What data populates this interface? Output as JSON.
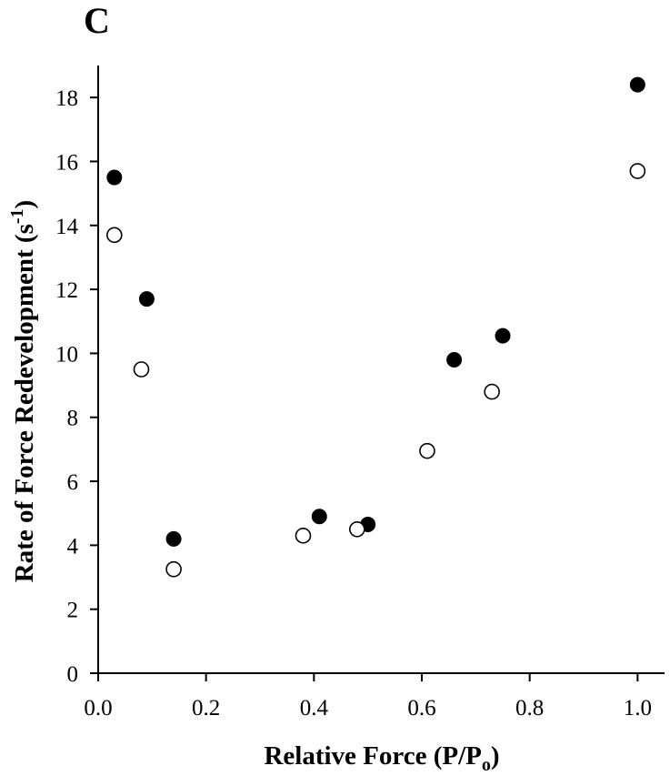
{
  "panel_label": "C",
  "chart_data": {
    "type": "scatter",
    "xlabel": "Relative Force (P/P",
    "xlabel_sub": "o",
    "xlabel_close": ")",
    "ylabel": "Rate of Force Redevelopment (s",
    "ylabel_sup": "-1",
    "ylabel_close": ")",
    "xlim": [
      0.0,
      1.05
    ],
    "ylim": [
      0,
      19
    ],
    "xticks": [
      0.0,
      0.2,
      0.4,
      0.6,
      0.8,
      1.0
    ],
    "xtick_labels": [
      "0.0",
      "0.2",
      "0.4",
      "0.6",
      "0.8",
      "1.0"
    ],
    "yticks": [
      0,
      2,
      4,
      6,
      8,
      10,
      12,
      14,
      16,
      18
    ],
    "ytick_labels": [
      "0",
      "2",
      "4",
      "6",
      "8",
      "10",
      "12",
      "14",
      "16",
      "18"
    ],
    "grid": false,
    "series": [
      {
        "marker": "filled-circle",
        "color": "#000000",
        "points": [
          {
            "x": 0.03,
            "y": 15.5
          },
          {
            "x": 0.09,
            "y": 11.7
          },
          {
            "x": 0.14,
            "y": 4.2
          },
          {
            "x": 0.41,
            "y": 4.9
          },
          {
            "x": 0.5,
            "y": 4.65
          },
          {
            "x": 0.66,
            "y": 9.8
          },
          {
            "x": 0.75,
            "y": 10.55
          },
          {
            "x": 1.0,
            "y": 18.4
          }
        ]
      },
      {
        "marker": "open-circle",
        "color": "#000000",
        "points": [
          {
            "x": 0.03,
            "y": 13.7
          },
          {
            "x": 0.08,
            "y": 9.5
          },
          {
            "x": 0.14,
            "y": 3.25
          },
          {
            "x": 0.38,
            "y": 4.3
          },
          {
            "x": 0.48,
            "y": 4.5
          },
          {
            "x": 0.61,
            "y": 6.95
          },
          {
            "x": 0.73,
            "y": 8.8
          },
          {
            "x": 1.0,
            "y": 15.7
          }
        ]
      }
    ]
  }
}
